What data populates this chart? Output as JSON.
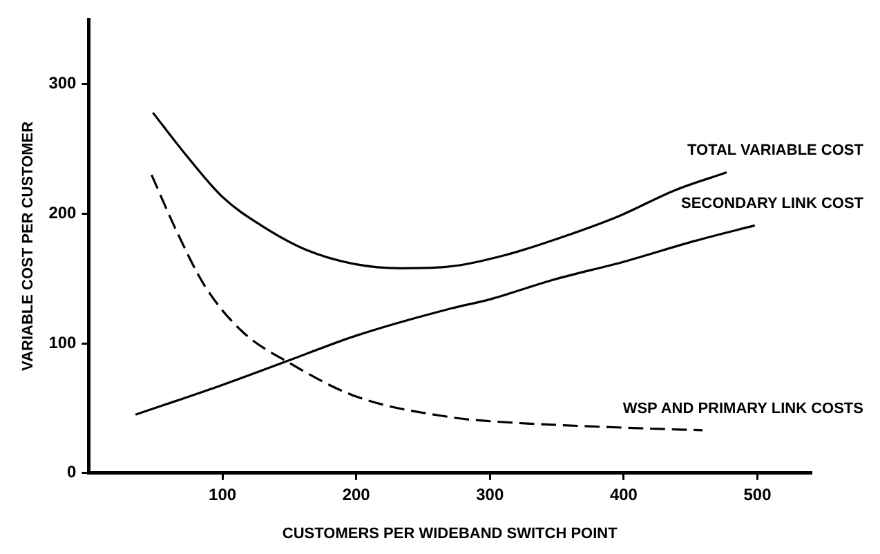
{
  "chart_data": {
    "type": "line",
    "xlabel": "CUSTOMERS PER WIDEBAND SWITCH POINT",
    "ylabel": "VARIABLE COST PER CUSTOMER",
    "xlim": [
      0,
      540
    ],
    "xticks": [
      100,
      200,
      300,
      400,
      500
    ],
    "ylim": [
      0,
      350
    ],
    "yticks": [
      0,
      100,
      200,
      300
    ],
    "grid": false,
    "legend": false,
    "marker": "none",
    "series": [
      {
        "name": "TOTAL VARIABLE COST",
        "color": "#000000",
        "line_style": "solid",
        "x": [
          48,
          73,
          100,
          129,
          163,
          200,
          233,
          267,
          311,
          354,
          396,
          438,
          477
        ],
        "values": [
          278,
          245,
          213,
          191,
          172,
          161,
          158,
          159,
          168,
          182,
          198,
          218,
          232
        ]
      },
      {
        "name": "SECONDARY LINK COST",
        "color": "#000000",
        "line_style": "solid",
        "x": [
          35,
          100,
          150,
          200,
          271,
          300,
          347,
          400,
          453,
          498
        ],
        "values": [
          45,
          68,
          87,
          106,
          127,
          134,
          149,
          163,
          179,
          191
        ]
      },
      {
        "name": "WSP AND PRIMARY LINK COSTS",
        "color": "#000000",
        "line_style": "dashed",
        "x": [
          47,
          66,
          87,
          115,
          150,
          200,
          271,
          300,
          400,
          459
        ],
        "values": [
          230,
          186,
          144,
          109,
          85,
          59,
          43,
          40,
          35,
          33
        ]
      }
    ]
  }
}
